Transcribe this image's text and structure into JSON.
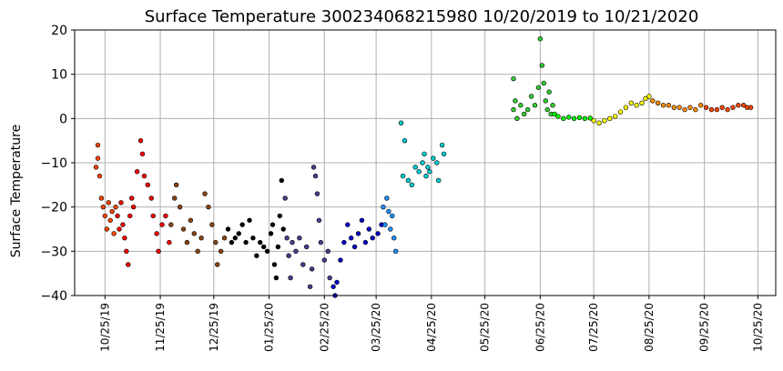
{
  "chart_data": {
    "type": "scatter",
    "title": "Surface Temperature 300234068215980  10/20/2019 to 10/21/2020",
    "xlabel": "",
    "ylabel": "Surface Temperature",
    "ylim": [
      -40,
      20
    ],
    "xlim": [
      "2019-10-08",
      "2020-11-04"
    ],
    "grid": true,
    "legend": "none",
    "x_ticks": [
      "10/25/19",
      "11/25/19",
      "12/25/19",
      "01/25/20",
      "02/25/20",
      "03/25/20",
      "04/25/20",
      "05/25/20",
      "06/25/20",
      "07/25/20",
      "08/25/20",
      "09/25/20",
      "10/25/20"
    ],
    "x_tick_dates": [
      "2019-10-25",
      "2019-11-25",
      "2019-12-25",
      "2020-01-25",
      "2020-02-25",
      "2020-03-25",
      "2020-04-25",
      "2020-05-25",
      "2020-06-25",
      "2020-07-25",
      "2020-08-25",
      "2020-09-25",
      "2020-10-25"
    ],
    "y_ticks": [
      20,
      10,
      0,
      -10,
      -20,
      -30,
      -40
    ],
    "point_series": [
      {
        "color": "#ff4500",
        "points": [
          [
            "2019-10-20",
            -11
          ],
          [
            "2019-10-21",
            -9
          ],
          [
            "2019-10-21",
            -6
          ],
          [
            "2019-10-22",
            -13
          ],
          [
            "2019-10-23",
            -18
          ],
          [
            "2019-10-24",
            -20
          ],
          [
            "2019-10-25",
            -22
          ],
          [
            "2019-10-26",
            -25
          ],
          [
            "2019-10-27",
            -19
          ],
          [
            "2019-10-28",
            -23
          ],
          [
            "2019-10-29",
            -21
          ],
          [
            "2019-10-30",
            -26
          ],
          [
            "2019-10-31",
            -20
          ]
        ]
      },
      {
        "color": "#ff0000",
        "points": [
          [
            "2019-11-01",
            -22
          ],
          [
            "2019-11-02",
            -25
          ],
          [
            "2019-11-03",
            -19
          ],
          [
            "2019-11-04",
            -24
          ],
          [
            "2019-11-05",
            -27
          ],
          [
            "2019-11-06",
            -30
          ],
          [
            "2019-11-07",
            -33
          ],
          [
            "2019-11-08",
            -22
          ],
          [
            "2019-11-09",
            -18
          ],
          [
            "2019-11-10",
            -20
          ],
          [
            "2019-11-12",
            -12
          ],
          [
            "2019-11-14",
            -5
          ],
          [
            "2019-11-15",
            -8
          ],
          [
            "2019-11-16",
            -13
          ],
          [
            "2019-11-18",
            -15
          ],
          [
            "2019-11-20",
            -18
          ],
          [
            "2019-11-21",
            -22
          ],
          [
            "2019-11-23",
            -26
          ],
          [
            "2019-11-24",
            -30
          ],
          [
            "2019-11-26",
            -24
          ],
          [
            "2019-11-28",
            -22
          ],
          [
            "2019-11-30",
            -28
          ]
        ]
      },
      {
        "color": "#8b4513",
        "points": [
          [
            "2019-12-01",
            -24
          ],
          [
            "2019-12-03",
            -18
          ],
          [
            "2019-12-04",
            -15
          ],
          [
            "2019-12-06",
            -20
          ],
          [
            "2019-12-08",
            -25
          ],
          [
            "2019-12-10",
            -28
          ],
          [
            "2019-12-12",
            -23
          ],
          [
            "2019-12-14",
            -26
          ],
          [
            "2019-12-16",
            -30
          ],
          [
            "2019-12-18",
            -27
          ],
          [
            "2019-12-20",
            -17
          ],
          [
            "2019-12-22",
            -20
          ],
          [
            "2019-12-24",
            -24
          ],
          [
            "2019-12-26",
            -28
          ],
          [
            "2019-12-27",
            -33
          ],
          [
            "2019-12-29",
            -30
          ],
          [
            "2019-12-31",
            -27
          ]
        ]
      },
      {
        "color": "#000000",
        "points": [
          [
            "2020-01-02",
            -25
          ],
          [
            "2020-01-04",
            -28
          ],
          [
            "2020-01-06",
            -27
          ],
          [
            "2020-01-08",
            -26
          ],
          [
            "2020-01-10",
            -24
          ],
          [
            "2020-01-12",
            -28
          ],
          [
            "2020-01-14",
            -23
          ],
          [
            "2020-01-16",
            -27
          ],
          [
            "2020-01-18",
            -31
          ],
          [
            "2020-01-20",
            -28
          ],
          [
            "2020-01-22",
            -29
          ],
          [
            "2020-01-24",
            -30
          ],
          [
            "2020-01-26",
            -26
          ],
          [
            "2020-01-27",
            -24
          ],
          [
            "2020-01-28",
            -33
          ],
          [
            "2020-01-29",
            -36
          ],
          [
            "2020-01-30",
            -29
          ],
          [
            "2020-01-31",
            -22
          ],
          [
            "2020-02-01",
            -14
          ],
          [
            "2020-02-02",
            -25
          ]
        ]
      },
      {
        "color": "#483d8b",
        "points": [
          [
            "2020-02-03",
            -18
          ],
          [
            "2020-02-04",
            -27
          ],
          [
            "2020-02-05",
            -31
          ],
          [
            "2020-02-06",
            -36
          ],
          [
            "2020-02-07",
            -28
          ],
          [
            "2020-02-09",
            -30
          ],
          [
            "2020-02-11",
            -27
          ],
          [
            "2020-02-13",
            -33
          ],
          [
            "2020-02-15",
            -29
          ],
          [
            "2020-02-17",
            -38
          ],
          [
            "2020-02-18",
            -34
          ],
          [
            "2020-02-19",
            -11
          ],
          [
            "2020-02-20",
            -13
          ],
          [
            "2020-02-21",
            -17
          ],
          [
            "2020-02-22",
            -23
          ],
          [
            "2020-02-23",
            -28
          ],
          [
            "2020-02-25",
            -32
          ],
          [
            "2020-02-27",
            -30
          ],
          [
            "2020-02-28",
            -36
          ]
        ]
      },
      {
        "color": "#0000cd",
        "points": [
          [
            "2020-03-01",
            -38
          ],
          [
            "2020-03-02",
            -40
          ],
          [
            "2020-03-03",
            -37
          ],
          [
            "2020-03-05",
            -32
          ],
          [
            "2020-03-07",
            -28
          ],
          [
            "2020-03-09",
            -24
          ],
          [
            "2020-03-11",
            -27
          ],
          [
            "2020-03-13",
            -29
          ],
          [
            "2020-03-15",
            -26
          ],
          [
            "2020-03-17",
            -23
          ],
          [
            "2020-03-19",
            -28
          ],
          [
            "2020-03-21",
            -25
          ],
          [
            "2020-03-23",
            -27
          ],
          [
            "2020-03-26",
            -26
          ],
          [
            "2020-03-28",
            -24
          ]
        ]
      },
      {
        "color": "#1e90ff",
        "points": [
          [
            "2020-03-29",
            -20
          ],
          [
            "2020-03-30",
            -24
          ],
          [
            "2020-03-31",
            -18
          ],
          [
            "2020-04-01",
            -21
          ],
          [
            "2020-04-02",
            -25
          ],
          [
            "2020-04-03",
            -22
          ],
          [
            "2020-04-04",
            -27
          ],
          [
            "2020-04-05",
            -30
          ]
        ]
      },
      {
        "color": "#00ced1",
        "points": [
          [
            "2020-04-08",
            -1
          ],
          [
            "2020-04-09",
            -13
          ],
          [
            "2020-04-10",
            -5
          ],
          [
            "2020-04-12",
            -14
          ],
          [
            "2020-04-14",
            -15
          ],
          [
            "2020-04-16",
            -11
          ],
          [
            "2020-04-18",
            -12
          ],
          [
            "2020-04-20",
            -10
          ],
          [
            "2020-04-21",
            -8
          ],
          [
            "2020-04-22",
            -13
          ],
          [
            "2020-04-23",
            -11
          ],
          [
            "2020-04-24",
            -12
          ],
          [
            "2020-04-26",
            -9
          ],
          [
            "2020-04-28",
            -10
          ],
          [
            "2020-04-29",
            -14
          ],
          [
            "2020-05-01",
            -6
          ],
          [
            "2020-05-02",
            -8
          ]
        ]
      },
      {
        "color": "#32cd32",
        "points": [
          [
            "2020-06-10",
            9
          ],
          [
            "2020-06-10",
            2
          ],
          [
            "2020-06-11",
            4
          ],
          [
            "2020-06-12",
            0
          ],
          [
            "2020-06-14",
            3
          ],
          [
            "2020-06-16",
            1
          ],
          [
            "2020-06-18",
            2
          ],
          [
            "2020-06-20",
            5
          ],
          [
            "2020-06-22",
            3
          ],
          [
            "2020-06-24",
            7
          ],
          [
            "2020-06-25",
            18
          ],
          [
            "2020-06-26",
            12
          ],
          [
            "2020-06-27",
            8
          ],
          [
            "2020-06-28",
            4
          ],
          [
            "2020-06-29",
            2
          ],
          [
            "2020-06-30",
            6
          ],
          [
            "2020-07-01",
            1
          ],
          [
            "2020-07-02",
            3
          ]
        ]
      },
      {
        "color": "#00ff00",
        "points": [
          [
            "2020-07-03",
            1
          ],
          [
            "2020-07-05",
            0.5
          ],
          [
            "2020-07-08",
            0
          ],
          [
            "2020-07-11",
            0.3
          ],
          [
            "2020-07-14",
            0
          ],
          [
            "2020-07-17",
            0.2
          ],
          [
            "2020-07-20",
            0
          ],
          [
            "2020-07-23",
            0.1
          ]
        ]
      },
      {
        "color": "#ffff00",
        "points": [
          [
            "2020-07-25",
            -0.5
          ],
          [
            "2020-07-28",
            -1
          ],
          [
            "2020-07-31",
            -0.5
          ],
          [
            "2020-08-03",
            0
          ],
          [
            "2020-08-06",
            0.5
          ],
          [
            "2020-08-09",
            1.5
          ],
          [
            "2020-08-12",
            2.5
          ],
          [
            "2020-08-15",
            3.5
          ],
          [
            "2020-08-18",
            3
          ],
          [
            "2020-08-21",
            3.5
          ],
          [
            "2020-08-23",
            4.5
          ],
          [
            "2020-08-25",
            5
          ]
        ]
      },
      {
        "color": "#ff8c00",
        "points": [
          [
            "2020-08-27",
            4
          ],
          [
            "2020-08-30",
            3.5
          ],
          [
            "2020-09-02",
            3
          ],
          [
            "2020-09-05",
            3
          ],
          [
            "2020-09-08",
            2.5
          ],
          [
            "2020-09-11",
            2.5
          ],
          [
            "2020-09-14",
            2
          ],
          [
            "2020-09-17",
            2.5
          ],
          [
            "2020-09-20",
            2
          ],
          [
            "2020-09-23",
            3
          ]
        ]
      },
      {
        "color": "#ff4500",
        "points": [
          [
            "2020-09-26",
            2.5
          ],
          [
            "2020-09-29",
            2
          ],
          [
            "2020-10-02",
            2
          ],
          [
            "2020-10-05",
            2.5
          ],
          [
            "2020-10-08",
            2
          ],
          [
            "2020-10-11",
            2.5
          ],
          [
            "2020-10-14",
            3
          ],
          [
            "2020-10-17",
            3
          ],
          [
            "2020-10-19",
            2.5
          ],
          [
            "2020-10-21",
            2.5
          ]
        ]
      }
    ]
  }
}
